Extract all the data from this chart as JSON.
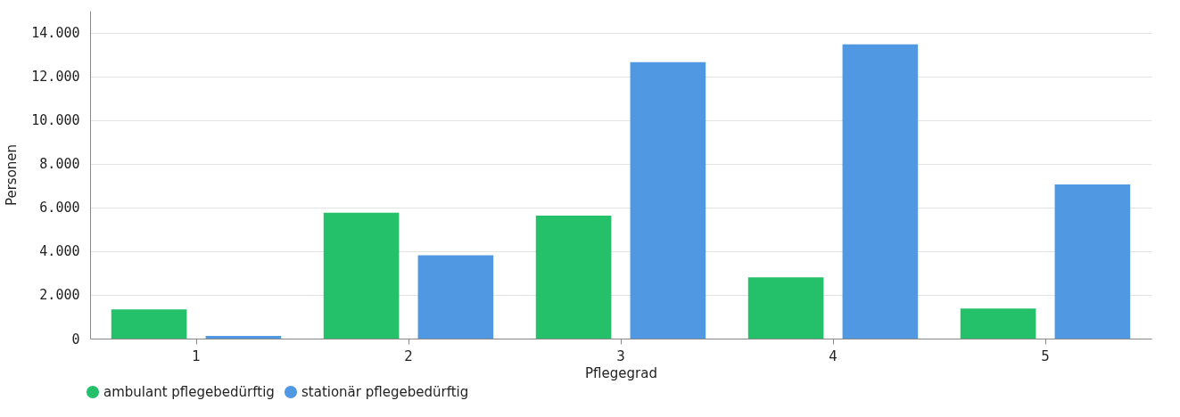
{
  "chart_data": {
    "type": "bar",
    "xlabel": "Pflegegrad",
    "ylabel": "Personen",
    "categories": [
      "1",
      "2",
      "3",
      "4",
      "5"
    ],
    "series": [
      {
        "name": "ambulant pflegebedürftig",
        "color": "#24c16a",
        "values": [
          1340,
          5760,
          5630,
          2800,
          1380
        ]
      },
      {
        "name": "stationär pflegebedürftig",
        "color": "#5099e2",
        "values": [
          120,
          3810,
          12650,
          13460,
          7050
        ]
      }
    ],
    "ylim": [
      0,
      15000
    ],
    "yticks": [
      {
        "value": 0,
        "label": "0"
      },
      {
        "value": 2000,
        "label": "2.000"
      },
      {
        "value": 4000,
        "label": "4.000"
      },
      {
        "value": 6000,
        "label": "6.000"
      },
      {
        "value": 8000,
        "label": "8.000"
      },
      {
        "value": 10000,
        "label": "10.000"
      },
      {
        "value": 12000,
        "label": "12.000"
      },
      {
        "value": 14000,
        "label": "14.000"
      }
    ],
    "grid": "y",
    "legend": "bottom left"
  }
}
